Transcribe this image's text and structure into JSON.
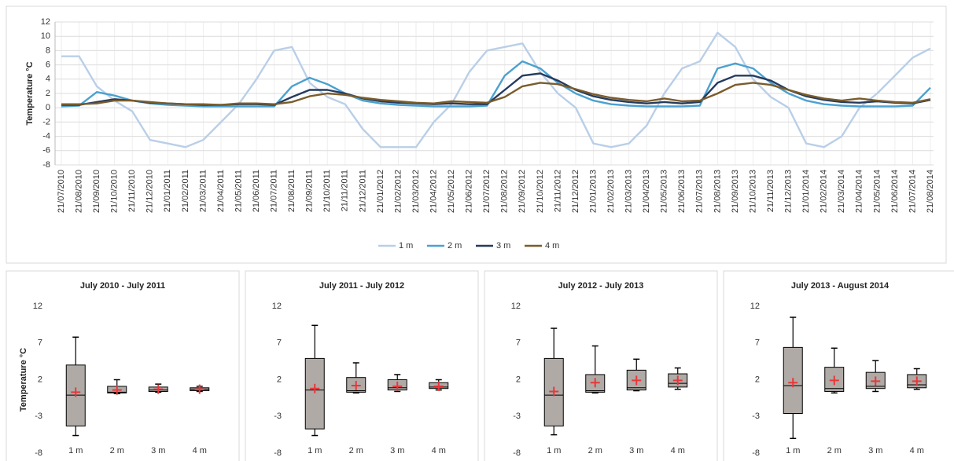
{
  "chart_data": [
    {
      "type": "line",
      "ylabel": "Temperature °C",
      "categories": [
        "21/07/2010",
        "21/08/2010",
        "21/09/2010",
        "21/10/2010",
        "21/11/2010",
        "21/12/2010",
        "21/01/2011",
        "21/02/2011",
        "21/03/2011",
        "21/04/2011",
        "21/05/2011",
        "21/06/2011",
        "21/07/2011",
        "21/08/2011",
        "21/09/2011",
        "21/10/2011",
        "21/11/2011",
        "21/12/2011",
        "21/01/2012",
        "21/02/2012",
        "21/03/2012",
        "21/04/2012",
        "21/05/2012",
        "21/06/2012",
        "21/07/2012",
        "21/08/2012",
        "21/09/2012",
        "21/10/2012",
        "21/11/2012",
        "21/12/2012",
        "21/01/2013",
        "21/02/2013",
        "21/03/2013",
        "21/04/2013",
        "21/05/2013",
        "21/06/2013",
        "21/07/2013",
        "21/08/2013",
        "21/09/2013",
        "21/10/2013",
        "21/11/2013",
        "21/12/2013",
        "21/01/2014",
        "21/02/2014",
        "21/03/2014",
        "21/04/2014",
        "21/05/2014",
        "21/06/2014",
        "21/07/2014",
        "21/08/2014"
      ],
      "series": [
        {
          "name": "1 m",
          "color": "#b9cfe8",
          "values": [
            7.2,
            7.2,
            3.0,
            1.0,
            -0.5,
            -4.5,
            -5.0,
            -5.5,
            -4.5,
            -2.0,
            0.5,
            4.0,
            8.0,
            8.5,
            3.5,
            1.5,
            0.5,
            -3.0,
            -5.5,
            -5.5,
            -5.5,
            -2.0,
            0.5,
            5.0,
            8.0,
            8.5,
            9.0,
            5.0,
            2.0,
            0.0,
            -5.0,
            -5.5,
            -5.0,
            -2.5,
            2.0,
            5.5,
            6.5,
            10.5,
            8.5,
            4.0,
            1.5,
            0.0,
            -5.0,
            -5.5,
            -4.0,
            0.0,
            2.0,
            4.5,
            7.0,
            8.3
          ]
        },
        {
          "name": "2 m",
          "color": "#4ba1cf",
          "values": [
            0.2,
            0.3,
            2.2,
            1.7,
            1.0,
            0.6,
            0.4,
            0.3,
            0.2,
            0.2,
            0.2,
            0.2,
            0.2,
            3.0,
            4.2,
            3.3,
            2.0,
            1.0,
            0.6,
            0.4,
            0.3,
            0.2,
            0.2,
            0.2,
            0.3,
            4.5,
            6.5,
            5.5,
            3.5,
            2.0,
            1.0,
            0.5,
            0.3,
            0.2,
            0.2,
            0.2,
            0.3,
            5.5,
            6.2,
            5.5,
            3.5,
            2.0,
            1.0,
            0.5,
            0.3,
            0.2,
            0.2,
            0.2,
            0.3,
            2.8
          ]
        },
        {
          "name": "3 m",
          "color": "#253b5e",
          "values": [
            0.4,
            0.4,
            0.8,
            1.2,
            1.0,
            0.7,
            0.6,
            0.5,
            0.4,
            0.4,
            0.5,
            0.5,
            0.4,
            1.5,
            2.5,
            2.5,
            2.0,
            1.3,
            0.9,
            0.7,
            0.6,
            0.5,
            0.6,
            0.5,
            0.5,
            2.5,
            4.5,
            4.8,
            3.8,
            2.5,
            1.6,
            1.1,
            0.8,
            0.6,
            0.8,
            0.6,
            0.8,
            3.5,
            4.5,
            4.5,
            3.8,
            2.5,
            1.6,
            1.1,
            0.8,
            0.7,
            0.9,
            0.7,
            0.6,
            1.1
          ]
        },
        {
          "name": "4 m",
          "color": "#7a5c2b",
          "values": [
            0.5,
            0.5,
            0.6,
            1.0,
            1.0,
            0.8,
            0.6,
            0.5,
            0.5,
            0.4,
            0.6,
            0.6,
            0.5,
            0.8,
            1.6,
            2.0,
            1.8,
            1.4,
            1.1,
            0.9,
            0.7,
            0.6,
            0.9,
            0.8,
            0.7,
            1.5,
            3.0,
            3.5,
            3.3,
            2.6,
            1.9,
            1.4,
            1.1,
            0.9,
            1.3,
            0.9,
            1.0,
            2.0,
            3.2,
            3.5,
            3.2,
            2.5,
            1.8,
            1.3,
            1.0,
            1.3,
            1.0,
            0.8,
            0.7,
            1.2
          ]
        }
      ],
      "ylim": [
        -8,
        12
      ],
      "yticks": [
        -8,
        -6,
        -4,
        -2,
        0,
        2,
        4,
        6,
        8,
        10,
        12
      ],
      "grid": true,
      "legend": "bottom"
    },
    {
      "type": "box",
      "title": "July 2010 - July 2011",
      "ylabel": "Temperature °C",
      "categories": [
        "1 m",
        "2 m",
        "3 m",
        "4 m"
      ],
      "min": [
        -5.6,
        0.1,
        0.3,
        0.4
      ],
      "q1": [
        -4.3,
        0.2,
        0.4,
        0.5
      ],
      "median": [
        -0.1,
        0.3,
        0.6,
        0.7
      ],
      "q3": [
        4.0,
        1.1,
        1.0,
        0.9
      ],
      "max": [
        7.8,
        2.0,
        1.4,
        1.1
      ],
      "mean": [
        0.3,
        0.6,
        0.7,
        0.7
      ],
      "color": "#b0aaa6",
      "mean_color": "#e8373a",
      "ylim": [
        -8,
        12
      ],
      "yticks": [
        -8,
        -3,
        2,
        7,
        12
      ]
    },
    {
      "type": "box",
      "title": "July 2011 - July 2012",
      "categories": [
        "1 m",
        "2 m",
        "3 m",
        "4 m"
      ],
      "min": [
        -5.6,
        0.2,
        0.4,
        0.6
      ],
      "q1": [
        -4.7,
        0.3,
        0.6,
        0.8
      ],
      "median": [
        0.6,
        0.5,
        0.9,
        1.0
      ],
      "q3": [
        4.9,
        2.3,
        2.0,
        1.6
      ],
      "max": [
        9.4,
        4.3,
        2.7,
        2.0
      ],
      "mean": [
        0.8,
        1.2,
        1.1,
        1.1
      ],
      "color": "#b0aaa6",
      "mean_color": "#e8373a",
      "ylim": [
        -8,
        12
      ],
      "yticks": [
        -8,
        -3,
        2,
        7,
        12
      ]
    },
    {
      "type": "box",
      "title": "July 2012 - July 2013",
      "categories": [
        "1 m",
        "2 m",
        "3 m",
        "4 m"
      ],
      "min": [
        -5.5,
        0.2,
        0.5,
        0.7
      ],
      "q1": [
        -4.3,
        0.3,
        0.6,
        1.0
      ],
      "median": [
        -0.1,
        0.5,
        0.9,
        1.5
      ],
      "q3": [
        4.9,
        2.7,
        3.3,
        2.8
      ],
      "max": [
        9.0,
        6.6,
        4.8,
        3.6
      ],
      "mean": [
        0.4,
        1.6,
        1.9,
        1.9
      ],
      "color": "#b0aaa6",
      "mean_color": "#e8373a",
      "ylim": [
        -8,
        12
      ],
      "yticks": [
        -8,
        -3,
        2,
        7,
        12
      ]
    },
    {
      "type": "box",
      "title": "July 2013 - August 2014",
      "categories": [
        "1 m",
        "2 m",
        "3 m",
        "4 m"
      ],
      "min": [
        -6.0,
        0.2,
        0.4,
        0.7
      ],
      "q1": [
        -2.6,
        0.4,
        0.8,
        0.9
      ],
      "median": [
        1.2,
        0.8,
        1.1,
        1.3
      ],
      "q3": [
        6.4,
        3.7,
        3.0,
        2.7
      ],
      "max": [
        10.5,
        6.3,
        4.6,
        3.5
      ],
      "mean": [
        1.6,
        1.9,
        1.8,
        1.8
      ],
      "color": "#b0aaa6",
      "mean_color": "#e8373a",
      "ylim": [
        -8,
        12
      ],
      "yticks": [
        -8,
        -3,
        2,
        7,
        12
      ]
    }
  ]
}
